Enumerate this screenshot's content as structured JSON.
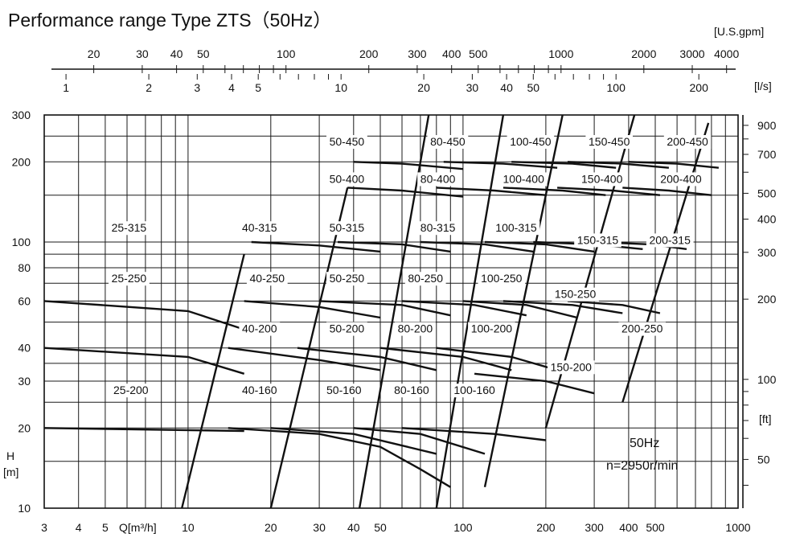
{
  "chart_data": {
    "type": "line",
    "title": "Performance range Type ZTS（50Hz）",
    "xlabel": "Q[m³/h]",
    "ylabel_main": "H",
    "ylabel_unit": "[m]",
    "x_scale": "log",
    "y_scale": "log",
    "xlim": [
      3,
      1000
    ],
    "ylim": [
      10,
      300
    ],
    "grid": true,
    "x_ticks": [
      "3",
      "4",
      "5",
      "10",
      "20",
      "30",
      "40",
      "50",
      "100",
      "200",
      "300",
      "400",
      "500",
      "1000"
    ],
    "x_tick_values": [
      3,
      4,
      5,
      10,
      20,
      30,
      40,
      50,
      100,
      200,
      300,
      400,
      500,
      1000
    ],
    "y_ticks": [
      "10",
      "20",
      "30",
      "40",
      "60",
      "80",
      "100",
      "200",
      "300"
    ],
    "y_tick_values": [
      10,
      20,
      30,
      40,
      60,
      80,
      100,
      200,
      300
    ],
    "secondary_axes": {
      "usgpm": {
        "unit": "[U.S.gpm]",
        "ticks": [
          "20",
          "30",
          "40",
          "50",
          "100",
          "200",
          "300",
          "400",
          "500",
          "1000",
          "2000",
          "3000",
          "4000"
        ],
        "values": [
          20,
          30,
          40,
          50,
          100,
          200,
          300,
          400,
          500,
          1000,
          2000,
          3000,
          4000
        ]
      },
      "ls": {
        "unit": "[l/s]",
        "ticks": [
          "1",
          "2",
          "3",
          "4",
          "5",
          "10",
          "20",
          "30",
          "40",
          "50",
          "100",
          "200"
        ],
        "values": [
          1,
          2,
          3,
          4,
          5,
          10,
          20,
          30,
          40,
          50,
          100,
          200
        ]
      },
      "ft": {
        "unit": "[ft]",
        "ticks": [
          "50",
          "100",
          "200",
          "300",
          "400",
          "500",
          "700",
          "900"
        ],
        "values": [
          50,
          100,
          200,
          300,
          400,
          500,
          700,
          900
        ]
      }
    },
    "annotations": [
      "50Hz",
      "n=2950r/min"
    ],
    "series": [
      {
        "name": "25-200",
        "points": [
          [
            3,
            20
          ],
          [
            16,
            19.5
          ]
        ]
      },
      {
        "name": "25-250",
        "points": [
          [
            3,
            40
          ],
          [
            10,
            37
          ],
          [
            16,
            32
          ]
        ]
      },
      {
        "name": "25-315",
        "points": [
          [
            3,
            60
          ],
          [
            10,
            55
          ],
          [
            17,
            46
          ]
        ]
      },
      {
        "name": "40-160",
        "points": [
          [
            14,
            20
          ],
          [
            30,
            19
          ],
          [
            50,
            17
          ],
          [
            70,
            14
          ],
          [
            90,
            12
          ]
        ]
      },
      {
        "name": "40-200",
        "points": [
          [
            14,
            40
          ],
          [
            30,
            36
          ],
          [
            50,
            33
          ]
        ]
      },
      {
        "name": "40-250",
        "points": [
          [
            16,
            60
          ],
          [
            30,
            57
          ],
          [
            50,
            52
          ]
        ]
      },
      {
        "name": "40-315",
        "points": [
          [
            17,
            100
          ],
          [
            30,
            97
          ],
          [
            50,
            92
          ]
        ]
      },
      {
        "name": "50-160",
        "points": [
          [
            20,
            20
          ],
          [
            40,
            19
          ],
          [
            80,
            16
          ]
        ]
      },
      {
        "name": "50-200",
        "points": [
          [
            25,
            40
          ],
          [
            50,
            37
          ],
          [
            80,
            33
          ]
        ]
      },
      {
        "name": "50-250",
        "points": [
          [
            30,
            60
          ],
          [
            60,
            58
          ],
          [
            90,
            53
          ]
        ]
      },
      {
        "name": "50-315",
        "points": [
          [
            35,
            100
          ],
          [
            60,
            98
          ],
          [
            90,
            92
          ]
        ]
      },
      {
        "name": "50-400",
        "points": [
          [
            38,
            160
          ],
          [
            60,
            156
          ],
          [
            100,
            148
          ]
        ]
      },
      {
        "name": "50-450",
        "points": [
          [
            40,
            200
          ],
          [
            60,
            197
          ],
          [
            100,
            188
          ]
        ]
      },
      {
        "name": "80-160",
        "points": [
          [
            40,
            20
          ],
          [
            70,
            19
          ],
          [
            120,
            16
          ]
        ]
      },
      {
        "name": "80-200",
        "points": [
          [
            50,
            40
          ],
          [
            100,
            37
          ],
          [
            150,
            33
          ]
        ]
      },
      {
        "name": "80-250",
        "points": [
          [
            60,
            60
          ],
          [
            110,
            58
          ],
          [
            170,
            53
          ]
        ]
      },
      {
        "name": "80-315",
        "points": [
          [
            70,
            100
          ],
          [
            120,
            98
          ],
          [
            180,
            92
          ]
        ]
      },
      {
        "name": "80-400",
        "points": [
          [
            80,
            160
          ],
          [
            130,
            156
          ],
          [
            200,
            150
          ]
        ]
      },
      {
        "name": "80-450",
        "points": [
          [
            85,
            200
          ],
          [
            140,
            197
          ],
          [
            220,
            190
          ]
        ]
      },
      {
        "name": "100-160",
        "points": [
          [
            60,
            20
          ],
          [
            130,
            19
          ],
          [
            200,
            18
          ]
        ]
      },
      {
        "name": "100-200",
        "points": [
          [
            80,
            40
          ],
          [
            150,
            37
          ],
          [
            220,
            33
          ]
        ]
      },
      {
        "name": "100-250",
        "points": [
          [
            100,
            60
          ],
          [
            170,
            58
          ],
          [
            260,
            52
          ]
        ]
      },
      {
        "name": "100-315",
        "points": [
          [
            120,
            100
          ],
          [
            200,
            98
          ],
          [
            300,
            92
          ]
        ]
      },
      {
        "name": "100-400",
        "points": [
          [
            140,
            160
          ],
          [
            230,
            156
          ],
          [
            330,
            150
          ]
        ]
      },
      {
        "name": "100-450",
        "points": [
          [
            150,
            200
          ],
          [
            250,
            197
          ],
          [
            360,
            190
          ]
        ]
      },
      {
        "name": "150-200",
        "points": [
          [
            110,
            32
          ],
          [
            200,
            30
          ],
          [
            300,
            27
          ]
        ]
      },
      {
        "name": "150-250",
        "points": [
          [
            140,
            60
          ],
          [
            250,
            58
          ],
          [
            380,
            54
          ]
        ]
      },
      {
        "name": "150-315",
        "points": [
          [
            180,
            100
          ],
          [
            300,
            98
          ],
          [
            450,
            94
          ]
        ]
      },
      {
        "name": "150-400",
        "points": [
          [
            220,
            160
          ],
          [
            350,
            156
          ],
          [
            520,
            150
          ]
        ]
      },
      {
        "name": "150-450",
        "points": [
          [
            240,
            200
          ],
          [
            380,
            197
          ],
          [
            560,
            190
          ]
        ]
      },
      {
        "name": "200-250",
        "points": [
          [
            240,
            60
          ],
          [
            380,
            58
          ],
          [
            520,
            54
          ]
        ]
      },
      {
        "name": "200-315",
        "points": [
          [
            300,
            100
          ],
          [
            480,
            98
          ],
          [
            650,
            94
          ]
        ]
      },
      {
        "name": "200-400",
        "points": [
          [
            380,
            160
          ],
          [
            560,
            156
          ],
          [
            800,
            150
          ]
        ]
      },
      {
        "name": "200-450",
        "points": [
          [
            400,
            200
          ],
          [
            600,
            197
          ],
          [
            850,
            190
          ]
        ]
      }
    ],
    "series_labels": [
      {
        "name": "25-315",
        "q": 6.1,
        "h": 110
      },
      {
        "name": "25-250",
        "q": 6.1,
        "h": 71
      },
      {
        "name": "25-200",
        "q": 6.2,
        "h": 27
      },
      {
        "name": "40-315",
        "q": 18.2,
        "h": 110
      },
      {
        "name": "40-250",
        "q": 19.4,
        "h": 71
      },
      {
        "name": "40-200",
        "q": 18.2,
        "h": 46
      },
      {
        "name": "40-160",
        "q": 18.2,
        "h": 27
      },
      {
        "name": "50-450",
        "q": 37.8,
        "h": 232
      },
      {
        "name": "50-400",
        "q": 37.8,
        "h": 168
      },
      {
        "name": "50-315",
        "q": 37.8,
        "h": 110
      },
      {
        "name": "50-250",
        "q": 37.8,
        "h": 71
      },
      {
        "name": "50-200",
        "q": 37.8,
        "h": 46
      },
      {
        "name": "50-160",
        "q": 36.9,
        "h": 27
      },
      {
        "name": "80-450",
        "q": 88,
        "h": 232
      },
      {
        "name": "80-400",
        "q": 81,
        "h": 168
      },
      {
        "name": "80-315",
        "q": 81,
        "h": 110
      },
      {
        "name": "80-250",
        "q": 73,
        "h": 71
      },
      {
        "name": "80-200",
        "q": 67,
        "h": 46
      },
      {
        "name": "80-160",
        "q": 65,
        "h": 27
      },
      {
        "name": "100-450",
        "q": 176,
        "h": 232
      },
      {
        "name": "100-400",
        "q": 166,
        "h": 168
      },
      {
        "name": "100-315",
        "q": 156,
        "h": 110
      },
      {
        "name": "100-250",
        "q": 138,
        "h": 71
      },
      {
        "name": "100-200",
        "q": 127,
        "h": 46
      },
      {
        "name": "100-160",
        "q": 110,
        "h": 27
      },
      {
        "name": "150-450",
        "q": 340,
        "h": 232
      },
      {
        "name": "150-400",
        "q": 320,
        "h": 168
      },
      {
        "name": "150-315",
        "q": 309,
        "h": 99
      },
      {
        "name": "150-250",
        "q": 256,
        "h": 62
      },
      {
        "name": "150-200",
        "q": 247,
        "h": 33
      },
      {
        "name": "200-450",
        "q": 655,
        "h": 232
      },
      {
        "name": "200-400",
        "q": 620,
        "h": 168
      },
      {
        "name": "200-315",
        "q": 565,
        "h": 99
      },
      {
        "name": "200-250",
        "q": 448,
        "h": 46
      }
    ]
  }
}
